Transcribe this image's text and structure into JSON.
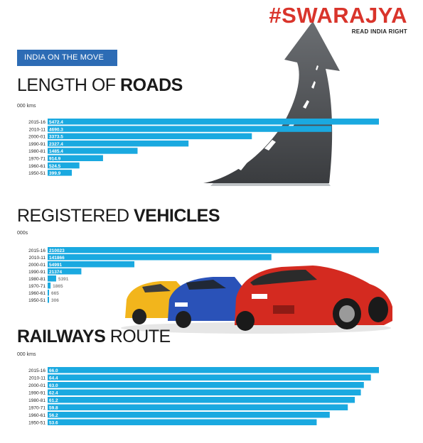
{
  "brand": {
    "name": "#SWARAJYA",
    "tagline": "READ INDIA RIGHT"
  },
  "banner": "INDIA ON THE MOVE",
  "colors": {
    "bar": "#1aa9e0",
    "brand": "#d9342b",
    "banner": "#2d6cb5"
  },
  "illustrations": [
    "road-arrow",
    "sports-cars"
  ],
  "chart_data": [
    {
      "type": "bar",
      "orientation": "horizontal",
      "title_regular": "LENGTH OF ",
      "title_bold": "ROADS",
      "unit": "000 kms",
      "categories": [
        "2015-16",
        "2010-11",
        "2000-01",
        "1990-91",
        "1980-81",
        "1970-71",
        "1960-61",
        "1950-51"
      ],
      "values": [
        5472.4,
        4690.3,
        3373.5,
        2327.4,
        1485.4,
        914.9,
        524.5,
        399.9
      ],
      "labels": [
        "5472.4",
        "4690.3",
        "3373.5",
        "2327.4",
        "1485.4",
        "914.9",
        "524.5",
        "399.9"
      ],
      "xlim": [
        0,
        5472.4
      ]
    },
    {
      "type": "bar",
      "orientation": "horizontal",
      "title_regular": "REGISTERED ",
      "title_bold": "VEHICLES",
      "unit": "000s",
      "categories": [
        "2015-16",
        "2010-11",
        "2000-01",
        "1990-91",
        "1980-81",
        "1970-71",
        "1960-61",
        "1950-51"
      ],
      "values": [
        210023,
        141866,
        54991,
        21374,
        5391,
        1865,
        665,
        306
      ],
      "labels": [
        "210023",
        "141866",
        "54991",
        "21374",
        "5391",
        "1865",
        "665",
        "306"
      ],
      "xlim": [
        0,
        210023
      ]
    },
    {
      "type": "bar",
      "orientation": "horizontal",
      "title_bold": "RAILWAYS",
      "title_regular": " ROUTE",
      "unit": "000 kms",
      "categories": [
        "2015-16",
        "2010-11",
        "2000-01",
        "1990-91",
        "1980-81",
        "1970-71",
        "1960-61",
        "1950-51"
      ],
      "values": [
        66.0,
        64.4,
        63.0,
        62.4,
        61.2,
        59.8,
        56.2,
        53.6
      ],
      "labels": [
        "66.0",
        "64.4",
        "63.0",
        "62.4",
        "61.2",
        "59.8",
        "56.2",
        "53.6"
      ],
      "xlim": [
        0,
        66.0
      ]
    }
  ]
}
